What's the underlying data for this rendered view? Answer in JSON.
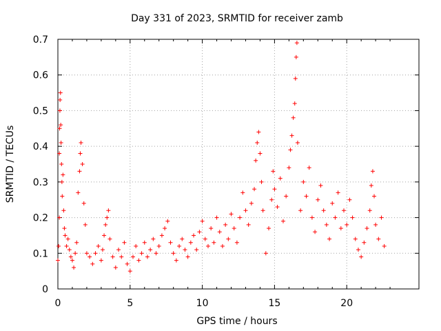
{
  "chart_data": {
    "type": "scatter",
    "title": "Day 331 of 2023, SRMTID for receiver zamb",
    "xlabel": "GPS time / hours",
    "ylabel": "SRMTID / TECUs",
    "xlim": [
      0,
      25
    ],
    "ylim": [
      0,
      0.7
    ],
    "x_ticks": [
      0,
      5,
      10,
      15,
      20
    ],
    "x_tick_labels": [
      "0",
      "5",
      "10",
      "15",
      "20"
    ],
    "y_ticks": [
      0,
      0.1,
      0.2,
      0.3,
      0.4,
      0.5,
      0.6,
      0.7
    ],
    "y_tick_labels": [
      "0",
      "0.1",
      "0.2",
      "0.3",
      "0.4",
      "0.5",
      "0.6",
      "0.7"
    ],
    "grid": true,
    "marker": "+",
    "color": "#ff0000",
    "series": [
      {
        "name": "SRMTID",
        "points": [
          [
            0.0,
            0.08
          ],
          [
            0.05,
            0.12
          ],
          [
            0.1,
            0.2
          ],
          [
            0.1,
            0.38
          ],
          [
            0.12,
            0.45
          ],
          [
            0.14,
            0.5
          ],
          [
            0.15,
            0.53
          ],
          [
            0.18,
            0.55
          ],
          [
            0.2,
            0.46
          ],
          [
            0.22,
            0.41
          ],
          [
            0.25,
            0.35
          ],
          [
            0.28,
            0.3
          ],
          [
            0.3,
            0.26
          ],
          [
            0.35,
            0.32
          ],
          [
            0.4,
            0.22
          ],
          [
            0.45,
            0.17
          ],
          [
            0.5,
            0.15
          ],
          [
            0.6,
            0.12
          ],
          [
            0.7,
            0.14
          ],
          [
            0.8,
            0.11
          ],
          [
            0.9,
            0.09
          ],
          [
            1.0,
            0.08
          ],
          [
            1.1,
            0.06
          ],
          [
            1.2,
            0.1
          ],
          [
            1.3,
            0.13
          ],
          [
            1.4,
            0.27
          ],
          [
            1.5,
            0.33
          ],
          [
            1.55,
            0.38
          ],
          [
            1.6,
            0.41
          ],
          [
            1.7,
            0.35
          ],
          [
            1.8,
            0.24
          ],
          [
            1.9,
            0.18
          ],
          [
            2.0,
            0.1
          ],
          [
            2.2,
            0.09
          ],
          [
            2.4,
            0.07
          ],
          [
            2.6,
            0.1
          ],
          [
            2.8,
            0.12
          ],
          [
            3.0,
            0.08
          ],
          [
            3.1,
            0.11
          ],
          [
            3.2,
            0.15
          ],
          [
            3.3,
            0.18
          ],
          [
            3.4,
            0.2
          ],
          [
            3.5,
            0.22
          ],
          [
            3.6,
            0.14
          ],
          [
            3.8,
            0.09
          ],
          [
            4.0,
            0.06
          ],
          [
            4.2,
            0.11
          ],
          [
            4.4,
            0.09
          ],
          [
            4.6,
            0.13
          ],
          [
            4.8,
            0.07
          ],
          [
            5.0,
            0.05
          ],
          [
            5.2,
            0.09
          ],
          [
            5.4,
            0.12
          ],
          [
            5.6,
            0.08
          ],
          [
            5.8,
            0.1
          ],
          [
            6.0,
            0.13
          ],
          [
            6.2,
            0.09
          ],
          [
            6.4,
            0.11
          ],
          [
            6.6,
            0.14
          ],
          [
            6.8,
            0.1
          ],
          [
            7.0,
            0.12
          ],
          [
            7.2,
            0.15
          ],
          [
            7.4,
            0.17
          ],
          [
            7.6,
            0.19
          ],
          [
            7.8,
            0.13
          ],
          [
            8.0,
            0.1
          ],
          [
            8.2,
            0.08
          ],
          [
            8.4,
            0.12
          ],
          [
            8.6,
            0.14
          ],
          [
            8.8,
            0.11
          ],
          [
            9.0,
            0.09
          ],
          [
            9.2,
            0.13
          ],
          [
            9.4,
            0.15
          ],
          [
            9.6,
            0.11
          ],
          [
            9.8,
            0.16
          ],
          [
            10.0,
            0.19
          ],
          [
            10.2,
            0.14
          ],
          [
            10.4,
            0.12
          ],
          [
            10.6,
            0.17
          ],
          [
            10.8,
            0.13
          ],
          [
            11.0,
            0.2
          ],
          [
            11.2,
            0.16
          ],
          [
            11.4,
            0.12
          ],
          [
            11.6,
            0.18
          ],
          [
            11.8,
            0.14
          ],
          [
            12.0,
            0.21
          ],
          [
            12.2,
            0.17
          ],
          [
            12.4,
            0.13
          ],
          [
            12.6,
            0.2
          ],
          [
            12.8,
            0.27
          ],
          [
            13.0,
            0.22
          ],
          [
            13.2,
            0.18
          ],
          [
            13.4,
            0.24
          ],
          [
            13.6,
            0.28
          ],
          [
            13.7,
            0.36
          ],
          [
            13.8,
            0.41
          ],
          [
            13.9,
            0.44
          ],
          [
            14.0,
            0.38
          ],
          [
            14.1,
            0.3
          ],
          [
            14.2,
            0.22
          ],
          [
            14.4,
            0.1
          ],
          [
            14.6,
            0.17
          ],
          [
            14.8,
            0.25
          ],
          [
            14.9,
            0.33
          ],
          [
            15.0,
            0.28
          ],
          [
            15.2,
            0.23
          ],
          [
            15.4,
            0.31
          ],
          [
            15.6,
            0.19
          ],
          [
            15.8,
            0.26
          ],
          [
            16.0,
            0.34
          ],
          [
            16.1,
            0.39
          ],
          [
            16.2,
            0.43
          ],
          [
            16.3,
            0.48
          ],
          [
            16.4,
            0.52
          ],
          [
            16.45,
            0.59
          ],
          [
            16.5,
            0.65
          ],
          [
            16.55,
            0.69
          ],
          [
            16.6,
            0.41
          ],
          [
            16.8,
            0.22
          ],
          [
            17.0,
            0.3
          ],
          [
            17.2,
            0.26
          ],
          [
            17.4,
            0.34
          ],
          [
            17.6,
            0.2
          ],
          [
            17.8,
            0.16
          ],
          [
            18.0,
            0.25
          ],
          [
            18.2,
            0.29
          ],
          [
            18.4,
            0.22
          ],
          [
            18.6,
            0.18
          ],
          [
            18.8,
            0.14
          ],
          [
            19.0,
            0.24
          ],
          [
            19.2,
            0.2
          ],
          [
            19.4,
            0.27
          ],
          [
            19.6,
            0.17
          ],
          [
            19.8,
            0.22
          ],
          [
            20.0,
            0.18
          ],
          [
            20.2,
            0.25
          ],
          [
            20.4,
            0.2
          ],
          [
            20.6,
            0.14
          ],
          [
            20.8,
            0.11
          ],
          [
            21.0,
            0.09
          ],
          [
            21.2,
            0.13
          ],
          [
            21.4,
            0.17
          ],
          [
            21.6,
            0.22
          ],
          [
            21.7,
            0.29
          ],
          [
            21.8,
            0.33
          ],
          [
            21.9,
            0.26
          ],
          [
            22.0,
            0.18
          ],
          [
            22.2,
            0.14
          ],
          [
            22.4,
            0.2
          ],
          [
            22.6,
            0.12
          ]
        ]
      }
    ]
  }
}
